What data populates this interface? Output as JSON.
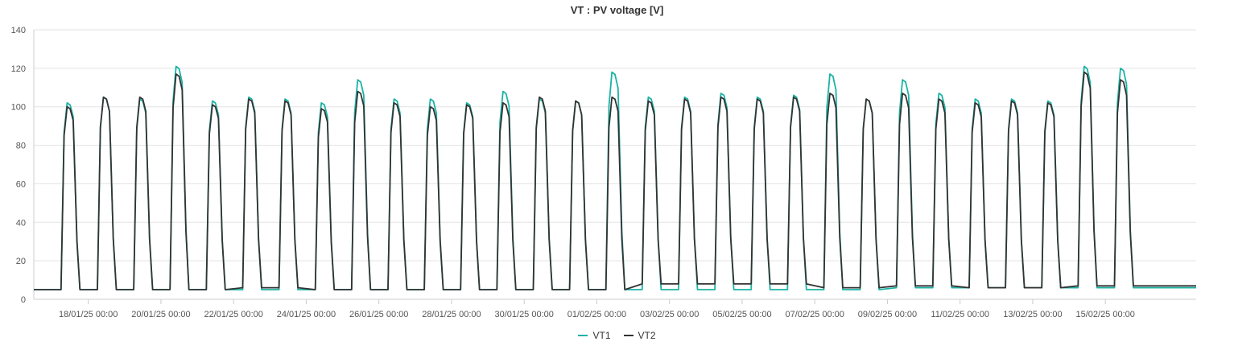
{
  "colors": {
    "vt1": "#1bb3a4",
    "vt2": "#333333",
    "grid": "#e3e3e3",
    "axis": "#cccccc"
  },
  "chart_data": {
    "type": "line",
    "title": "VT : PV voltage [V]",
    "xlabel": "",
    "ylabel": "",
    "ylim": [
      0,
      140
    ],
    "yticks": [
      0,
      20,
      40,
      60,
      80,
      100,
      120,
      140
    ],
    "x_range": [
      "2025-01-16T12:00",
      "2025-02-17T12:00"
    ],
    "xticks": [
      "18/01/25 00:00",
      "20/01/25 00:00",
      "22/01/25 00:00",
      "24/01/25 00:00",
      "26/01/25 00:00",
      "28/01/25 00:00",
      "30/01/25 00:00",
      "01/02/25 00:00",
      "03/02/25 00:00",
      "05/02/25 00:00",
      "07/02/25 00:00",
      "09/02/25 00:00",
      "11/02/25 00:00",
      "13/02/25 00:00",
      "15/02/25 00:00"
    ],
    "grid": true,
    "legend_position": "bottom-center",
    "series": [
      {
        "name": "VT1",
        "color": "#1bb3a4",
        "day_peaks": [
          102,
          105,
          104,
          121,
          103,
          105,
          104,
          102,
          114,
          104,
          104,
          102,
          108,
          104,
          103,
          118,
          105,
          105,
          107,
          105,
          106,
          117,
          104,
          114,
          107,
          104,
          104,
          103,
          121,
          120
        ],
        "night_values": [
          5,
          5,
          5,
          5,
          5,
          5,
          5,
          5,
          5,
          5,
          5,
          5,
          5,
          5,
          5,
          5,
          5,
          5,
          5,
          5,
          5,
          5,
          5,
          6,
          6,
          6,
          6,
          6,
          6,
          6
        ]
      },
      {
        "name": "VT2",
        "color": "#333333",
        "day_peaks": [
          100,
          105,
          105,
          117,
          101,
          104,
          103,
          99,
          108,
          102,
          100,
          101,
          102,
          105,
          103,
          105,
          103,
          104,
          105,
          104,
          105,
          107,
          104,
          107,
          104,
          102,
          103,
          102,
          118,
          114
        ],
        "night_values": [
          5,
          5,
          5,
          5,
          5,
          6,
          6,
          5,
          5,
          5,
          5,
          5,
          5,
          5,
          5,
          5,
          8,
          8,
          8,
          8,
          8,
          6,
          6,
          7,
          7,
          6,
          6,
          6,
          7,
          7
        ]
      }
    ]
  }
}
